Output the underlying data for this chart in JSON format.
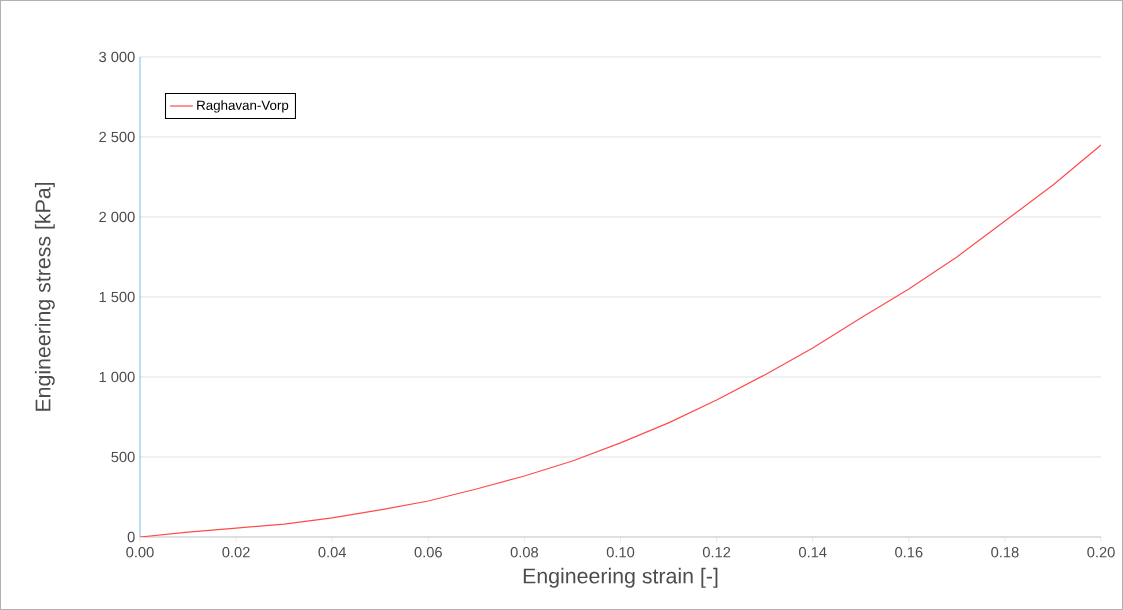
{
  "chart_data": {
    "type": "line",
    "xlabel": "Engineering strain [-]",
    "ylabel": "Engineering stress [kPa]",
    "x": [
      0,
      0.01,
      0.02,
      0.03,
      0.04,
      0.05,
      0.06,
      0.07,
      0.08,
      0.09,
      0.1,
      0.11,
      0.12,
      0.13,
      0.14,
      0.15,
      0.16,
      0.17,
      0.18,
      0.19,
      0.2
    ],
    "series": [
      {
        "name": "Raghavan-Vorp",
        "color": "#ff4b4b",
        "values": [
          0,
          31,
          56,
          81,
          119,
          169,
          225,
          300,
          381,
          475,
          588,
          713,
          856,
          1013,
          1181,
          1369,
          1550,
          1750,
          1975,
          2200,
          2450
        ]
      }
    ],
    "xlim": [
      0,
      0.2
    ],
    "ylim": [
      0,
      3000
    ],
    "xticks": [
      {
        "value": 0,
        "label": "0.00"
      },
      {
        "value": 0.02,
        "label": "0.02"
      },
      {
        "value": 0.04,
        "label": "0.04"
      },
      {
        "value": 0.06,
        "label": "0.06"
      },
      {
        "value": 0.08,
        "label": "0.08"
      },
      {
        "value": 0.1,
        "label": "0.10"
      },
      {
        "value": 0.12,
        "label": "0.12"
      },
      {
        "value": 0.14,
        "label": "0.14"
      },
      {
        "value": 0.16,
        "label": "0.16"
      },
      {
        "value": 0.18,
        "label": "0.18"
      },
      {
        "value": 0.2,
        "label": "0.20"
      }
    ],
    "yticks": [
      0,
      500,
      {
        "value": 1000,
        "label": "1 000"
      },
      {
        "value": 1500,
        "label": "1 500"
      },
      {
        "value": 2000,
        "label": "2 000"
      },
      {
        "value": 2500,
        "label": "2 500"
      },
      {
        "value": 3000,
        "label": "3 000"
      }
    ],
    "grid": "y",
    "legend": "top left",
    "marker": "none",
    "line_style": "solid"
  }
}
